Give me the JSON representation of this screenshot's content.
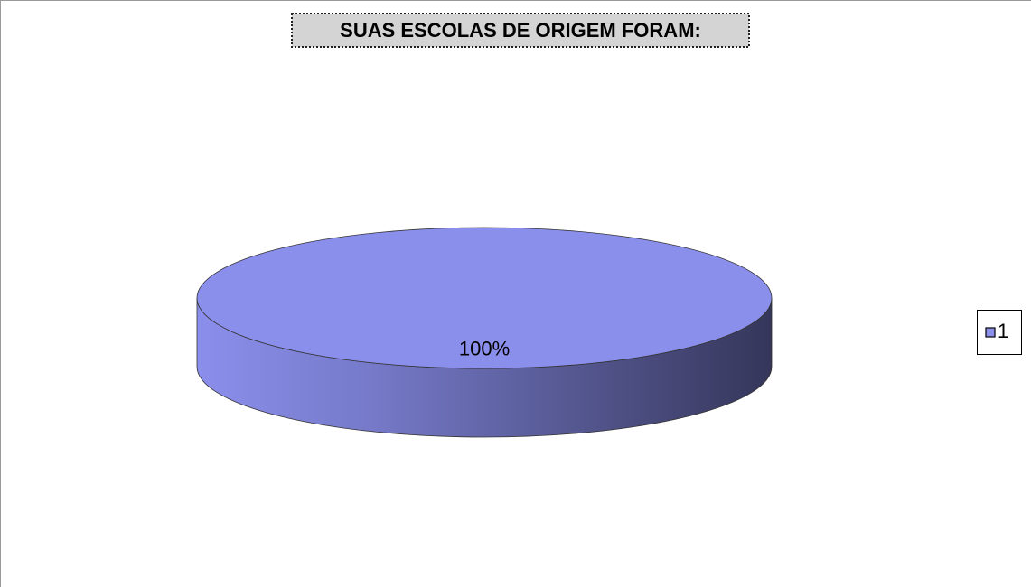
{
  "chart_data": {
    "type": "pie",
    "title": "SUAS ESCOLAS DE ORIGEM FORAM:",
    "categories": [
      "1"
    ],
    "values": [
      100
    ],
    "value_labels": [
      "100%"
    ],
    "colors": [
      "#8b8fec"
    ],
    "legend": "right"
  }
}
